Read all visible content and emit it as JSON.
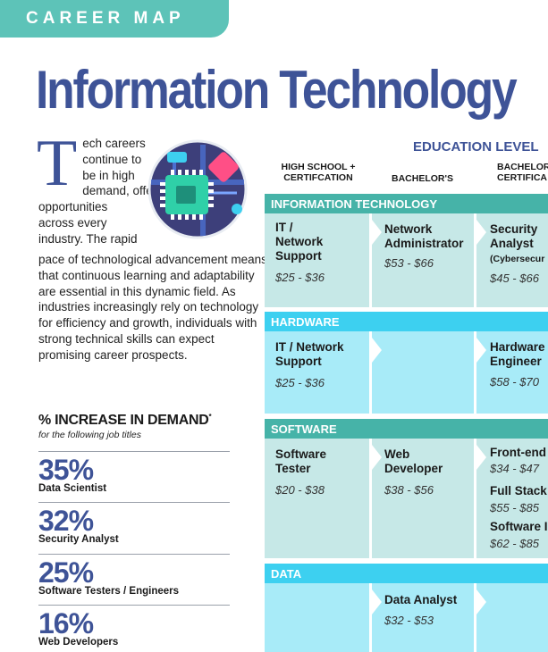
{
  "header": {
    "tab_label": "CAREER MAP",
    "title": "Information Technology"
  },
  "intro": {
    "dropcap": "T",
    "line1": "ech careers",
    "line2": "continue to",
    "line3": "be in high",
    "line4": "demand, offering",
    "line5": "opportunities",
    "line6": "across every",
    "line7": "industry. The rapid",
    "rest": "pace of technological advancement means that continuous learning and adaptability are essential in this dynamic field. As industries increasingly rely on technology for efficiency and growth, individuals with strong technical skills can expect promising career prospects."
  },
  "demand": {
    "title": "% INCREASE IN DEMAND",
    "asterisk": "*",
    "subtitle": "for the following job titles",
    "stats": [
      {
        "value": "35%",
        "label": "Data Scientist"
      },
      {
        "value": "32%",
        "label": "Security Analyst"
      },
      {
        "value": "25%",
        "label": "Software Testers / Engineers"
      },
      {
        "value": "16%",
        "label": "Web Developers"
      }
    ]
  },
  "education": {
    "label": "EDUCATION LEVEL",
    "columns": [
      {
        "line1": "HIGH SCHOOL +",
        "line2": "CERTIFCATION"
      },
      {
        "line1": "BACHELOR'S",
        "line2": ""
      },
      {
        "line1": "BACHELOR",
        "line2": "CERTIFICA"
      }
    ],
    "sections": [
      {
        "name": "INFORMATION TECHNOLOGY",
        "hs": {
          "title1": "IT /",
          "title2": "Network",
          "title3": "Support",
          "pay": "$25 - $36"
        },
        "bach": {
          "title1": "Network",
          "title2": "Administrator",
          "pay": "$53 - $66"
        },
        "cert": {
          "title1": "Security",
          "title2": "Analyst",
          "note": "(Cybersecur",
          "pay": "$45 - $66"
        }
      },
      {
        "name": "HARDWARE",
        "hs": {
          "title1": "IT / Network",
          "title2": "Support",
          "pay": "$25 - $36"
        },
        "cert": {
          "title1": "Hardware",
          "title2": "Engineer",
          "pay": "$58 - $70"
        }
      },
      {
        "name": "SOFTWARE",
        "hs": {
          "title1": "Software",
          "title2": "Tester",
          "pay": "$20 - $38"
        },
        "bach": {
          "title1": "Web",
          "title2": "Developer",
          "pay": "$38 - $56"
        },
        "cert": [
          {
            "title": "Front-end",
            "pay": "$34 - $47"
          },
          {
            "title": "Full Stack",
            "pay": "$55 - $85"
          },
          {
            "title": "Software I",
            "pay": "$62 - $85"
          }
        ]
      },
      {
        "name": "DATA",
        "bach": {
          "title1": "Data Analyst",
          "pay": "$32 - $53"
        }
      }
    ]
  },
  "colors": {
    "brand_blue": "#3e5397",
    "teal": "#46b3a8",
    "cyan": "#3dd0f0",
    "tab_teal": "#5dc3b8"
  },
  "icons": {
    "chip": "microchip-icon"
  }
}
